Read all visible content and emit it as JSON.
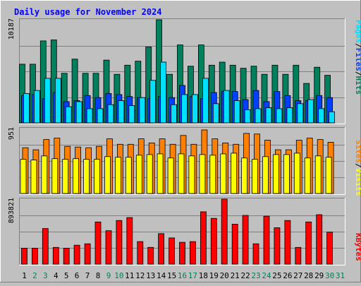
{
  "title": "Daily usage for November 2024",
  "colors": {
    "background": "#c0c0c0",
    "panel": "#c0c0c0",
    "title": "#0000ff",
    "hits": "#00805c",
    "files": "#0040ff",
    "pages": "#00e0ff",
    "visits": "#ffff00",
    "sites": "#ff8000",
    "kbytes": "#ff0000",
    "weekend_day": "#00805c",
    "weekday": "#000000"
  },
  "legend_top": [
    {
      "text": "Hits",
      "color": "#00805c"
    },
    {
      "text": "/",
      "color": "#000000"
    },
    {
      "text": "Files",
      "color": "#0040ff"
    },
    {
      "text": "/",
      "color": "#000000"
    },
    {
      "text": "Pages",
      "color": "#00e0ff"
    }
  ],
  "legend_mid": [
    {
      "text": "Visits",
      "color": "#ffff00"
    },
    {
      "text": "/",
      "color": "#000000"
    },
    {
      "text": "Sites",
      "color": "#ff8000"
    }
  ],
  "legend_bot": [
    {
      "text": "KBytes",
      "color": "#ff0000"
    }
  ],
  "chart_data": [
    {
      "type": "bar",
      "title": "Daily usage for November 2024",
      "ylabel": "10187",
      "ylim": [
        0,
        10187
      ],
      "categories": [
        "1",
        "2",
        "3",
        "4",
        "5",
        "6",
        "7",
        "8",
        "9",
        "10",
        "11",
        "12",
        "13",
        "14",
        "15",
        "16",
        "17",
        "18",
        "19",
        "20",
        "21",
        "22",
        "23",
        "24",
        "25",
        "26",
        "27",
        "28",
        "29",
        "30",
        "31"
      ],
      "weekend_days": [
        "2",
        "3",
        "9",
        "10",
        "16",
        "17",
        "23",
        "24",
        "30",
        "31"
      ],
      "series": [
        {
          "name": "Hits",
          "values": [
            5800,
            5800,
            8100,
            8200,
            4900,
            6300,
            4900,
            4900,
            6200,
            4800,
            5700,
            6100,
            7500,
            10187,
            4800,
            7700,
            5600,
            7700,
            5700,
            6000,
            5700,
            5400,
            5600,
            4800,
            5700,
            4800,
            5700,
            3900,
            5500,
            4700,
            0
          ]
        },
        {
          "name": "Files",
          "values": [
            2700,
            2800,
            2400,
            3000,
            2100,
            2200,
            2700,
            2500,
            2900,
            2800,
            2600,
            2500,
            2400,
            2600,
            2500,
            3700,
            2600,
            2400,
            3000,
            3100,
            3100,
            2300,
            3200,
            2100,
            3100,
            2700,
            2200,
            2200,
            2700,
            2500,
            0
          ]
        },
        {
          "name": "Pages",
          "values": [
            2900,
            3200,
            4400,
            4400,
            1600,
            2100,
            1400,
            1400,
            1800,
            2200,
            1700,
            2500,
            4200,
            6000,
            1800,
            2800,
            2800,
            4400,
            1900,
            3200,
            2200,
            1300,
            1400,
            1500,
            1400,
            1500,
            1900,
            2300,
            1400,
            1100,
            0
          ]
        }
      ]
    },
    {
      "type": "bar",
      "ylabel": "951",
      "ylim": [
        0,
        951
      ],
      "categories": [
        "1",
        "2",
        "3",
        "4",
        "5",
        "6",
        "7",
        "8",
        "9",
        "10",
        "11",
        "12",
        "13",
        "14",
        "15",
        "16",
        "17",
        "18",
        "19",
        "20",
        "21",
        "22",
        "23",
        "24",
        "25",
        "26",
        "27",
        "28",
        "29",
        "30",
        "31"
      ],
      "series": [
        {
          "name": "Visits",
          "values": [
            500,
            490,
            550,
            510,
            500,
            510,
            500,
            500,
            540,
            530,
            530,
            560,
            570,
            580,
            520,
            580,
            550,
            570,
            560,
            580,
            590,
            520,
            500,
            540,
            570,
            570,
            590,
            520,
            550,
            530,
            0
          ]
        },
        {
          "name": "Sites",
          "values": [
            670,
            640,
            790,
            810,
            690,
            680,
            670,
            690,
            800,
            720,
            720,
            800,
            740,
            800,
            720,
            850,
            720,
            930,
            800,
            740,
            720,
            880,
            870,
            780,
            640,
            640,
            780,
            810,
            790,
            750,
            0
          ]
        }
      ]
    },
    {
      "type": "bar",
      "ylabel": "893821",
      "ylim": [
        0,
        893821
      ],
      "categories": [
        "1",
        "2",
        "3",
        "4",
        "5",
        "6",
        "7",
        "8",
        "9",
        "10",
        "11",
        "12",
        "13",
        "14",
        "15",
        "16",
        "17",
        "18",
        "19",
        "20",
        "21",
        "22",
        "23",
        "24",
        "25",
        "26",
        "27",
        "28",
        "29",
        "30",
        "31"
      ],
      "series": [
        {
          "name": "KBytes",
          "values": [
            220000,
            220000,
            490000,
            230000,
            220000,
            260000,
            280000,
            580000,
            460000,
            600000,
            640000,
            310000,
            230000,
            420000,
            360000,
            300000,
            310000,
            720000,
            630000,
            893821,
            550000,
            670000,
            280000,
            660000,
            500000,
            600000,
            230000,
            580000,
            680000,
            440000,
            0
          ]
        }
      ]
    }
  ]
}
